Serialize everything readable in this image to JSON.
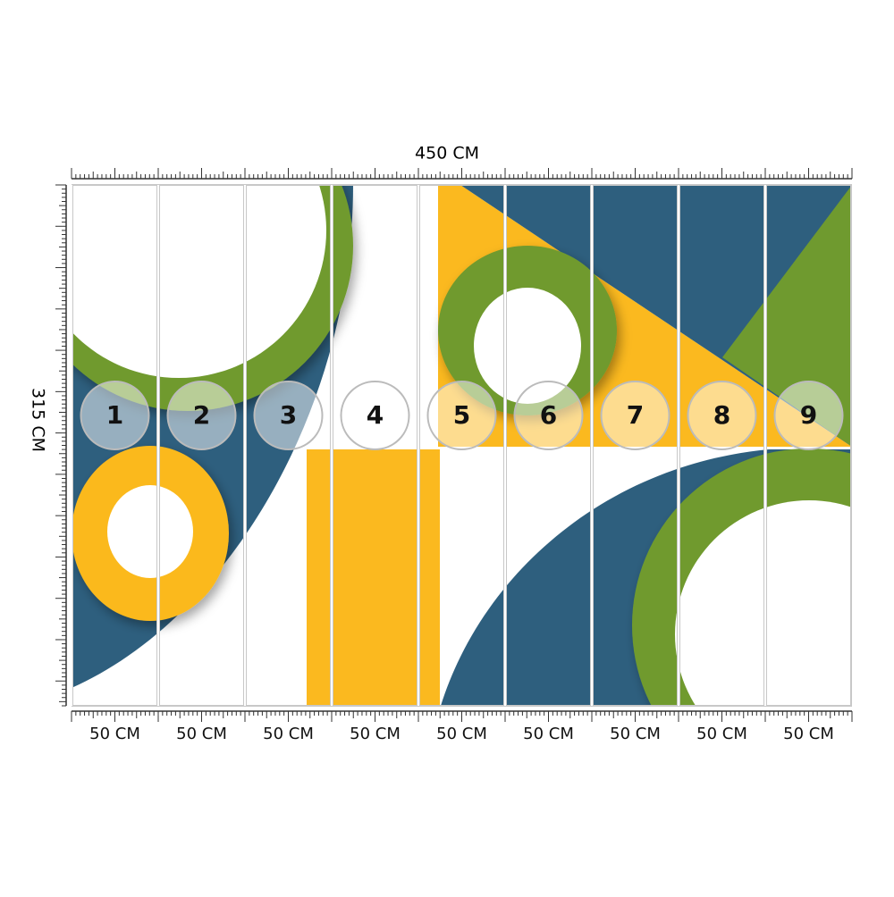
{
  "width_label": "450 CM",
  "height_label": "315 CM",
  "panels": [
    {
      "number": "1",
      "width": "50 CM"
    },
    {
      "number": "2",
      "width": "50 CM"
    },
    {
      "number": "3",
      "width": "50 CM"
    },
    {
      "number": "4",
      "width": "50 CM"
    },
    {
      "number": "5",
      "width": "50 CM"
    },
    {
      "number": "6",
      "width": "50 CM"
    },
    {
      "number": "7",
      "width": "50 CM"
    },
    {
      "number": "8",
      "width": "50 CM"
    },
    {
      "number": "9",
      "width": "50 CM"
    }
  ]
}
